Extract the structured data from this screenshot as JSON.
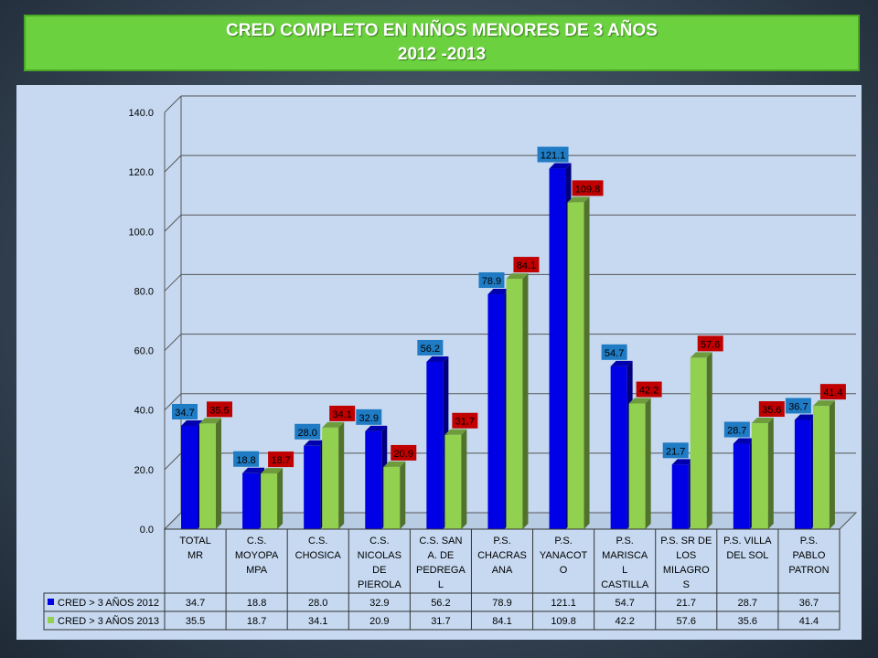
{
  "header": {
    "title_line1": "CRED COMPLETO EN NIÑOS MENORES DE 3 AÑOS",
    "title_line2": "2012 -2013"
  },
  "colors": {
    "series_2012": "#0000e6",
    "series_2013": "#92d050",
    "label_2012_bg": "#1f7bc4",
    "label_2013_bg": "#c00000"
  },
  "chart_data": {
    "type": "bar",
    "title": "",
    "xlabel": "",
    "ylabel": "",
    "ylim": [
      0,
      140
    ],
    "yticks": [
      "0.0",
      "20.0",
      "40.0",
      "60.0",
      "80.0",
      "100.0",
      "120.0",
      "140.0"
    ],
    "grid": true,
    "legend": "data-table",
    "categories": [
      [
        "TOTAL",
        "MR"
      ],
      [
        "C.S.",
        "MOYOPA",
        "MPA"
      ],
      [
        "C.S.",
        "CHOSICA"
      ],
      [
        "C.S.",
        "NICOLAS",
        "DE",
        "PIEROLA"
      ],
      [
        "C.S. SAN",
        "A. DE",
        "PEDREGA",
        "L"
      ],
      [
        "P.S.",
        "CHACRAS",
        "ANA"
      ],
      [
        "P.S.",
        "YANACOT",
        "O"
      ],
      [
        "P.S.",
        "MARISCA",
        "L",
        "CASTILLA"
      ],
      [
        "P.S. SR DE",
        "LOS",
        "MILAGRO",
        "S"
      ],
      [
        "P.S. VILLA",
        "DEL SOL"
      ],
      [
        "P.S.",
        "PABLO",
        "PATRON"
      ]
    ],
    "series": [
      {
        "name": "CRED > 3 AÑOS 2012",
        "values": [
          34.7,
          18.8,
          28.0,
          32.9,
          56.2,
          78.9,
          121.1,
          54.7,
          21.7,
          28.7,
          36.7
        ],
        "labels": [
          "34.7",
          "18.8",
          "28.0",
          "32.9",
          "56.2",
          "78.9",
          "121.1",
          "54.7",
          "21.7",
          "28.7",
          "36.7"
        ]
      },
      {
        "name": "CRED > 3 AÑOS 2013",
        "values": [
          35.5,
          18.7,
          34.1,
          20.9,
          31.7,
          84.1,
          109.8,
          42.2,
          57.6,
          35.6,
          41.4
        ],
        "labels": [
          "35.5",
          "18.7",
          "34.1",
          "20.9",
          "31.7",
          "84.1",
          "109.8",
          "42.2",
          "57.6",
          "35.6",
          "41.4"
        ]
      }
    ]
  }
}
